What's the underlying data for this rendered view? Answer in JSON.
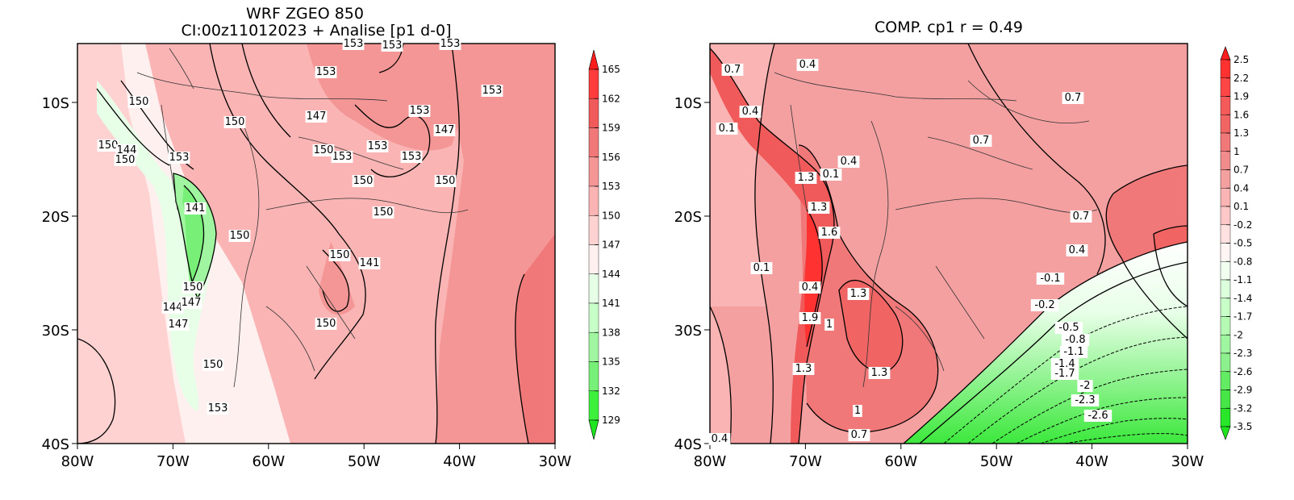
{
  "left_panel": {
    "title_line1": "WRF ZGEO 850",
    "title_line2": "CI:00z11012023 + Analise  [p1 d-0]",
    "x_ticks": [
      "80W",
      "70W",
      "60W",
      "50W",
      "40W",
      "30W"
    ],
    "y_ticks": [
      "10S",
      "20S",
      "30S",
      "40S"
    ],
    "colorbar_labels": [
      "165",
      "162",
      "159",
      "156",
      "153",
      "150",
      "147",
      "144",
      "141",
      "138",
      "135",
      "132",
      "129"
    ],
    "colorbar_colors": [
      "#ff1e1e",
      "#ff3c3c",
      "#f05a5a",
      "#f07878",
      "#f59696",
      "#fab4b4",
      "#ffd2d2",
      "#fff0f0",
      "#e6ffe6",
      "#c8ffc8",
      "#a0f5a0",
      "#78f078",
      "#3cf03c",
      "#1ee61e"
    ],
    "contour_labels": [
      {
        "text": "153"
      },
      {
        "text": "153"
      },
      {
        "text": "153"
      },
      {
        "text": "153"
      },
      {
        "text": "153"
      },
      {
        "text": "150"
      },
      {
        "text": "150"
      },
      {
        "text": "147"
      },
      {
        "text": "147"
      },
      {
        "text": "150"
      },
      {
        "text": "144"
      },
      {
        "text": "153"
      },
      {
        "text": "150"
      },
      {
        "text": "153"
      },
      {
        "text": "153"
      },
      {
        "text": "150"
      },
      {
        "text": "153"
      },
      {
        "text": "150"
      },
      {
        "text": "141"
      },
      {
        "text": "150"
      },
      {
        "text": "150"
      },
      {
        "text": "150"
      },
      {
        "text": "150"
      },
      {
        "text": "141"
      },
      {
        "text": "150"
      },
      {
        "text": "144"
      },
      {
        "text": "147"
      },
      {
        "text": "150"
      },
      {
        "text": "147"
      },
      {
        "text": "150"
      },
      {
        "text": "153"
      },
      {
        "text": "153"
      }
    ]
  },
  "right_panel": {
    "title": "COMP. cp1  r =  0.49",
    "x_ticks": [
      "80W",
      "70W",
      "60W",
      "50W",
      "40W",
      "30W"
    ],
    "y_ticks": [
      "10S",
      "20S",
      "30S",
      "40S"
    ],
    "colorbar_labels": [
      "2.5",
      "2.2",
      "1.9",
      "1.6",
      "1.3",
      "1",
      "0.7",
      "0.4",
      "0.1",
      "-0.2",
      "-0.5",
      "-0.8",
      "-1.1",
      "-1.4",
      "-1.7",
      "-2",
      "-2.3",
      "-2.6",
      "-2.9",
      "-3.2",
      "-3.5"
    ],
    "colorbar_colors": [
      "#ff1e1e",
      "#ff3232",
      "#ff4646",
      "#f55a5a",
      "#f06464",
      "#f07878",
      "#f08c8c",
      "#f5a0a0",
      "#fab4b4",
      "#ffc8c8",
      "#ffe1e1",
      "#fff5f5",
      "#f0fff0",
      "#dcffdc",
      "#c8ffc8",
      "#b4fab4",
      "#a0f5a0",
      "#8cf08c",
      "#64eb64",
      "#46e646",
      "#28e628",
      "#1ee61e"
    ],
    "contour_labels": [
      {
        "text": "0.7"
      },
      {
        "text": "0.4"
      },
      {
        "text": "1"
      },
      {
        "text": "0.4"
      },
      {
        "text": "0.1"
      },
      {
        "text": "0.7"
      },
      {
        "text": "0.7"
      },
      {
        "text": "1.3"
      },
      {
        "text": "0.4"
      },
      {
        "text": "0.1"
      },
      {
        "text": "1.3"
      },
      {
        "text": "1.6"
      },
      {
        "text": "0.7"
      },
      {
        "text": "0.4"
      },
      {
        "text": "0.1"
      },
      {
        "text": "0.4"
      },
      {
        "text": "-0.1"
      },
      {
        "text": "-0.2"
      },
      {
        "text": "1.3"
      },
      {
        "text": "1.9"
      },
      {
        "text": "1"
      },
      {
        "text": "-0.5"
      },
      {
        "text": "-0.8"
      },
      {
        "text": "-1.1"
      },
      {
        "text": "-1.4"
      },
      {
        "text": "-1.7"
      },
      {
        "text": "-2"
      },
      {
        "text": "1.3"
      },
      {
        "text": "1.3"
      },
      {
        "text": "-2.3"
      },
      {
        "text": "-2.6"
      },
      {
        "text": "1"
      },
      {
        "text": "0.4"
      },
      {
        "text": "0.7"
      }
    ]
  }
}
